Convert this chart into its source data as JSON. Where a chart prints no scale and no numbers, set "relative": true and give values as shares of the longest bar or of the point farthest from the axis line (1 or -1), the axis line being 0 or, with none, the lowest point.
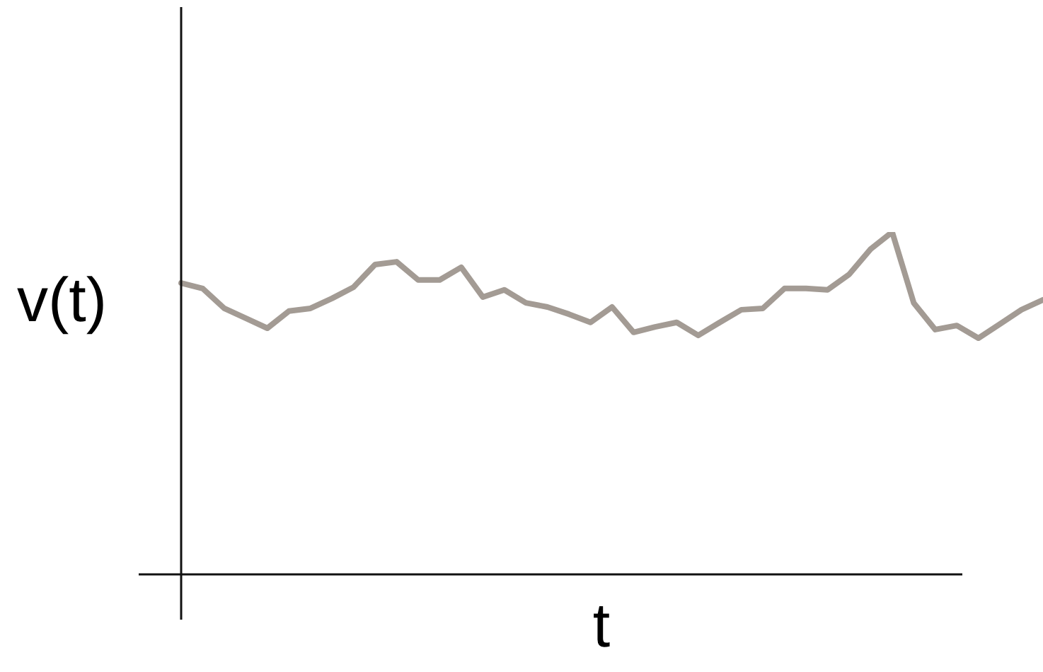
{
  "chart_data": {
    "type": "line",
    "relative": true,
    "xlabel": "t",
    "ylabel": "v(t)",
    "marker": "none",
    "line_style": "solid",
    "categories": [
      null,
      null,
      null,
      null,
      null,
      null,
      null,
      null,
      null,
      null,
      null,
      null,
      null,
      null,
      null,
      null,
      null,
      null,
      null,
      null,
      null,
      null,
      null,
      null,
      null,
      null,
      null,
      null,
      null,
      null,
      null,
      null,
      null,
      null,
      null,
      null,
      null,
      null,
      null,
      null,
      null
    ],
    "series": [
      {
        "color": "#a39b94",
        "values": [
          0.851,
          0.835,
          0.777,
          0.748,
          0.719,
          0.769,
          0.777,
          0.806,
          0.839,
          0.905,
          0.913,
          0.86,
          0.86,
          0.897,
          0.81,
          0.831,
          0.793,
          0.781,
          0.76,
          0.736,
          0.781,
          0.707,
          0.723,
          0.736,
          0.698,
          0.736,
          0.773,
          0.777,
          0.835,
          0.835,
          0.831,
          0.876,
          0.95,
          1,
          0.793,
          0.715,
          0.727,
          0.69,
          0.731,
          0.773,
          0.802
        ]
      }
    ],
    "legend": false
  }
}
